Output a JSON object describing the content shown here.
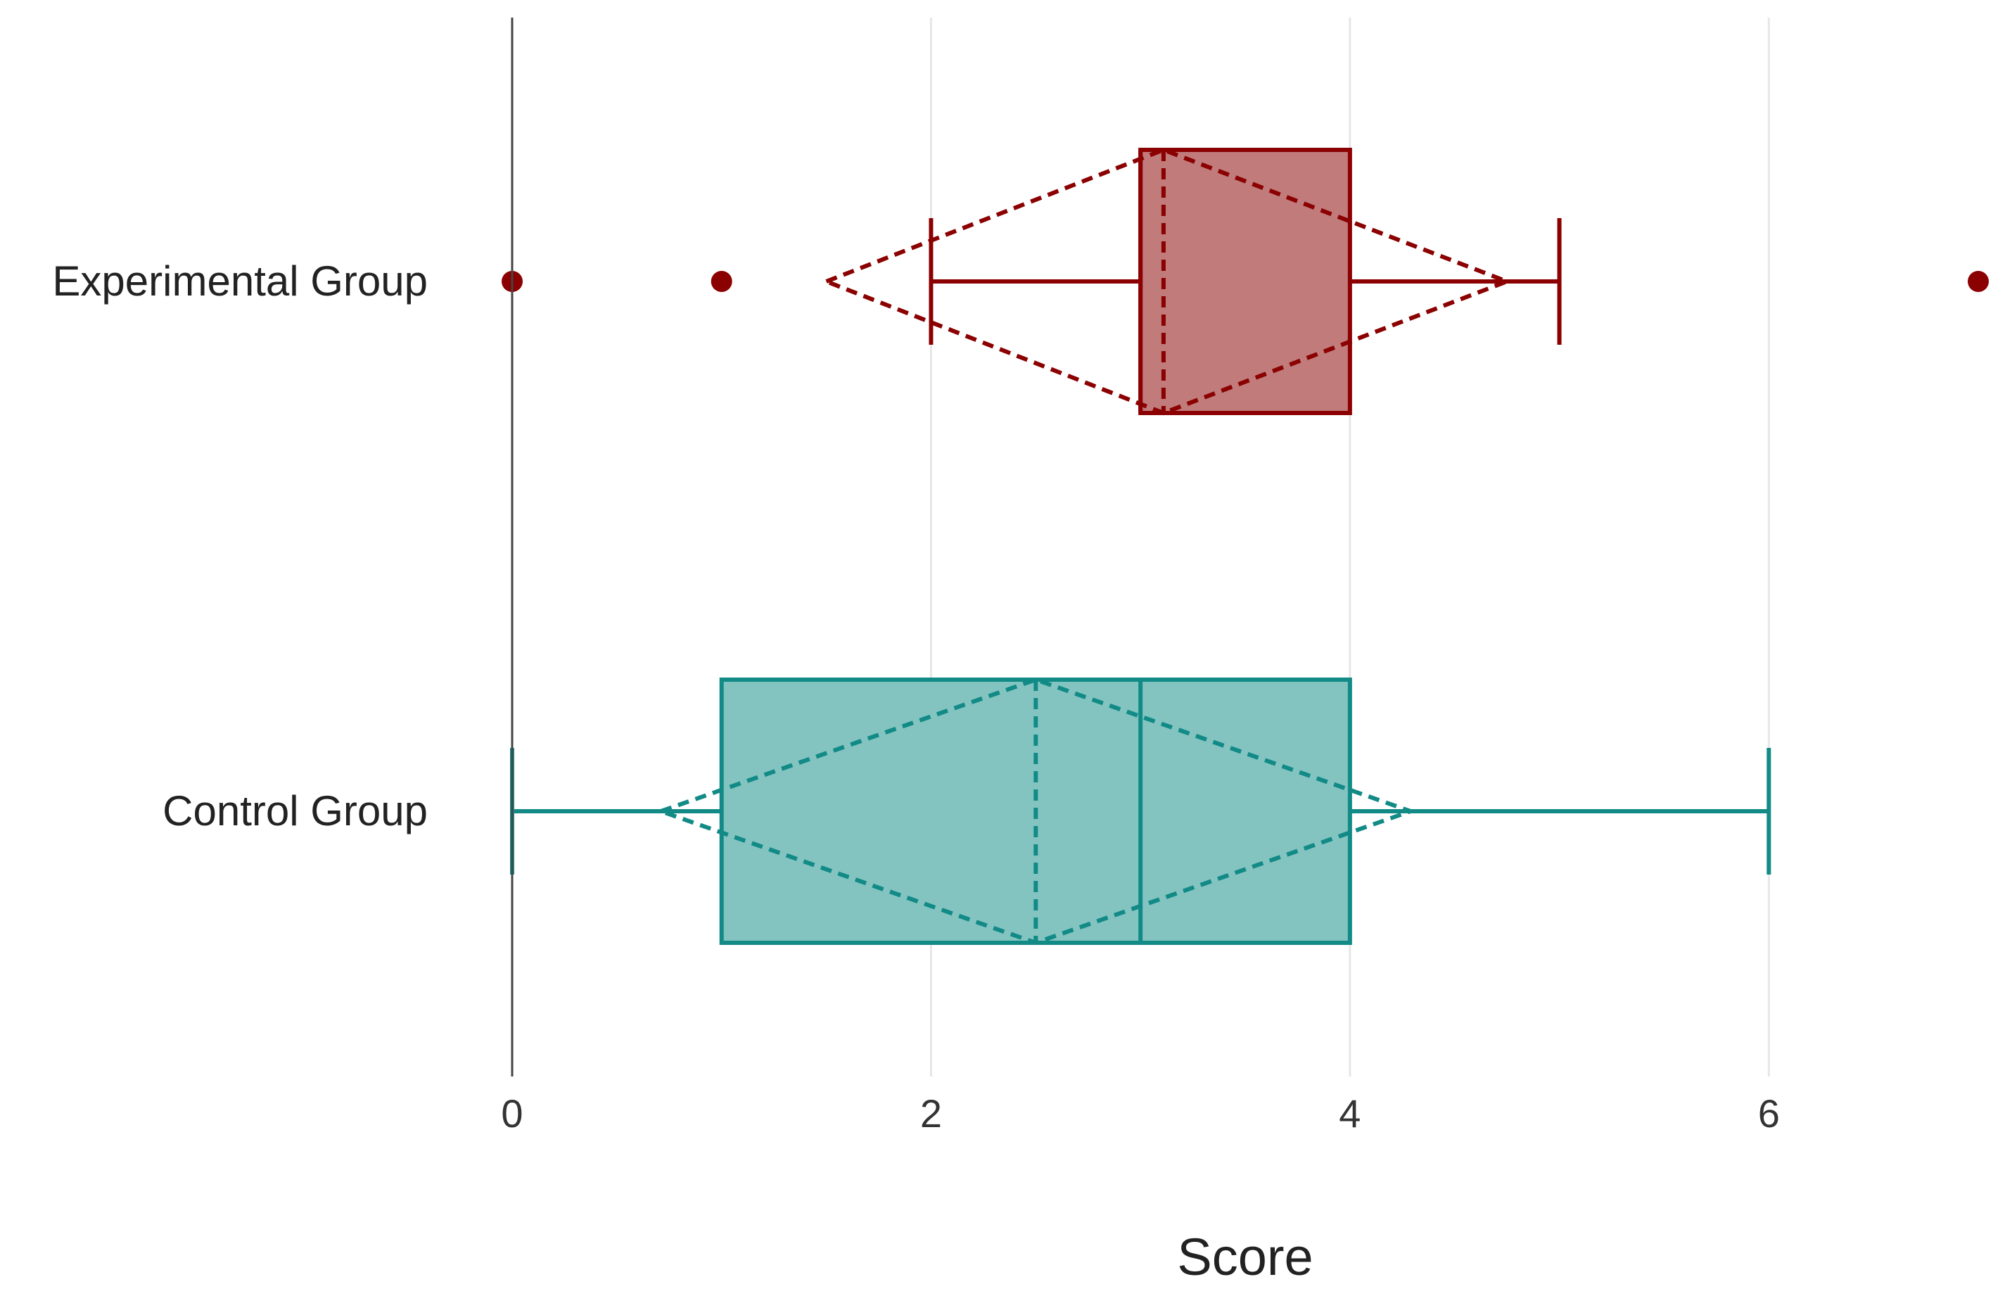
{
  "chart_data": {
    "type": "box",
    "orientation": "horizontal",
    "title": "",
    "xlabel": "Score",
    "ylabel": "",
    "xlim": [
      0,
      7
    ],
    "x_ticks": [
      "0",
      "2",
      "4",
      "6"
    ],
    "grid": "vertical",
    "legend": "none",
    "series": [
      {
        "category": "Experimental Group",
        "color": "#8b0000",
        "fill": "#c17b7b",
        "whisker_low": 2,
        "q1": 3,
        "median": 3,
        "q3": 4,
        "whisker_high": 5,
        "mean": 3.11,
        "sd_low": 1.5,
        "sd_high": 4.75,
        "outliers": [
          0,
          1,
          7
        ]
      },
      {
        "category": "Control Group",
        "color": "#128a86",
        "fill": "#83c4c1",
        "whisker_low": 0,
        "q1": 1,
        "median": 3,
        "q3": 4,
        "whisker_high": 6,
        "mean": 2.5,
        "sd_low": 0.71,
        "sd_high": 4.29,
        "outliers": []
      }
    ]
  }
}
